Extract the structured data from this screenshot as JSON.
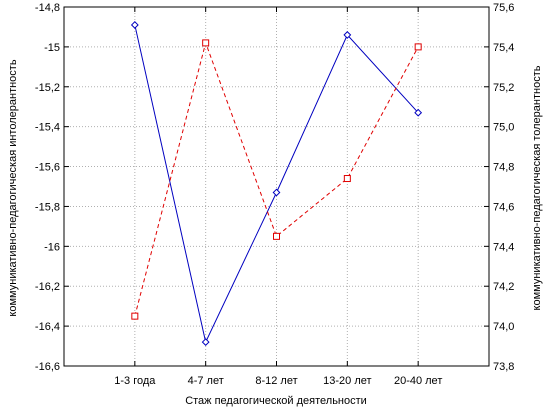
{
  "chart_data": {
    "type": "line",
    "categories": [
      "1-3 года",
      "4-7 лет",
      "8-12 лет",
      "13-20 лет",
      "20-40 лет"
    ],
    "xlabel": "Стаж педагогической деятельности",
    "ylabel_left": "коммуникативно-педагогическая интолерантность",
    "ylabel_right": "коммуникативно-педагогическая толерантность",
    "ylim_left": [
      -16.6,
      -14.8
    ],
    "ylim_right": [
      73.8,
      75.6
    ],
    "yticks_left": [
      "-14,8",
      "-15",
      "-15,2",
      "-15,4",
      "-15,6",
      "-15,8",
      "-16",
      "-16,2",
      "-16,4",
      "-16,6"
    ],
    "yticks_right": [
      "75,6",
      "75,4",
      "75,2",
      "75,0",
      "74,8",
      "74,6",
      "74,4",
      "74,2",
      "74,0",
      "73,8"
    ],
    "grid": true,
    "series": [
      {
        "axis": "left",
        "color": "#0000c0",
        "line": "solid",
        "marker": "diamond",
        "values": [
          -14.89,
          -16.48,
          -15.73,
          -14.94,
          -15.33
        ]
      },
      {
        "axis": "right",
        "color": "#e00000",
        "line": "dashed",
        "marker": "square",
        "values": [
          74.05,
          75.42,
          74.45,
          74.74,
          75.4
        ]
      }
    ]
  }
}
